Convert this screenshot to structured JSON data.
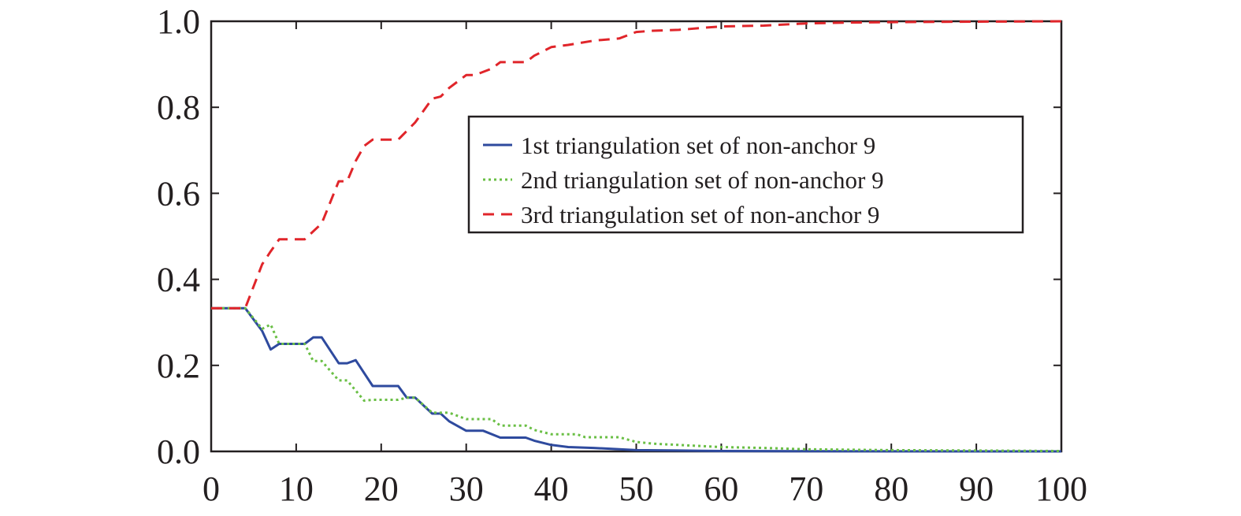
{
  "chart_data": {
    "type": "line",
    "title": "",
    "xlabel": "",
    "ylabel": "",
    "xlim": [
      0,
      100
    ],
    "ylim": [
      0,
      1
    ],
    "xticks": [
      0,
      10,
      20,
      30,
      40,
      50,
      60,
      70,
      80,
      90,
      100
    ],
    "yticks": [
      0,
      0.2,
      0.4,
      0.6,
      0.8,
      1.0
    ],
    "xtick_labels": [
      "0",
      "10",
      "20",
      "30",
      "40",
      "50",
      "60",
      "70",
      "80",
      "90",
      "100"
    ],
    "ytick_labels": [
      "0.0",
      "0.2",
      "0.4",
      "0.6",
      "0.8",
      "1.0"
    ],
    "grid": false,
    "legend_position": "upper-right",
    "series": [
      {
        "name": "1st triangulation set of non-anchor 9",
        "color": "#2e4a9e",
        "dash": "solid",
        "x": [
          0,
          4,
          6,
          7,
          8,
          11,
          12,
          13,
          15,
          16,
          17,
          19,
          22,
          23,
          24,
          26,
          27,
          28,
          30,
          32,
          34,
          37,
          38,
          40,
          42,
          45,
          48,
          50,
          55,
          60,
          70,
          80,
          100
        ],
        "y": [
          0.333,
          0.333,
          0.28,
          0.237,
          0.25,
          0.25,
          0.265,
          0.265,
          0.205,
          0.205,
          0.212,
          0.152,
          0.152,
          0.125,
          0.125,
          0.088,
          0.088,
          0.07,
          0.048,
          0.048,
          0.032,
          0.032,
          0.025,
          0.015,
          0.01,
          0.008,
          0.005,
          0.003,
          0.002,
          0.001,
          0.0005,
          0.0002,
          0
        ]
      },
      {
        "name": "2nd triangulation set of non-anchor 9",
        "color": "#6abf45",
        "dash": "dotted",
        "x": [
          0,
          4,
          6,
          7,
          8,
          11,
          12,
          13,
          15,
          16,
          18,
          19,
          22,
          23,
          24,
          26,
          28,
          30,
          33,
          34,
          37,
          38,
          40,
          43,
          44,
          48,
          50,
          52,
          55,
          60,
          65,
          70,
          80,
          90,
          100
        ],
        "y": [
          0.333,
          0.333,
          0.285,
          0.295,
          0.25,
          0.25,
          0.21,
          0.21,
          0.165,
          0.165,
          0.118,
          0.12,
          0.12,
          0.125,
          0.125,
          0.09,
          0.09,
          0.075,
          0.075,
          0.06,
          0.06,
          0.05,
          0.04,
          0.04,
          0.033,
          0.033,
          0.022,
          0.018,
          0.015,
          0.01,
          0.008,
          0.005,
          0.003,
          0.002,
          0.001
        ]
      },
      {
        "name": "3rd triangulation set of non-anchor 9",
        "color": "#e0252a",
        "dash": "dashed",
        "x": [
          0,
          4,
          6,
          7,
          8,
          10,
          11,
          13,
          15,
          16,
          17,
          18,
          19,
          20,
          22,
          24,
          26,
          27,
          28,
          30,
          31,
          33,
          34,
          37,
          38,
          40,
          42,
          45,
          48,
          50,
          52,
          55,
          58,
          60,
          65,
          70,
          75,
          80,
          90,
          100
        ],
        "y": [
          0.333,
          0.333,
          0.435,
          0.465,
          0.493,
          0.493,
          0.493,
          0.53,
          0.628,
          0.628,
          0.675,
          0.71,
          0.725,
          0.725,
          0.725,
          0.765,
          0.82,
          0.825,
          0.845,
          0.875,
          0.875,
          0.89,
          0.905,
          0.905,
          0.92,
          0.94,
          0.945,
          0.955,
          0.96,
          0.975,
          0.978,
          0.98,
          0.985,
          0.988,
          0.99,
          0.995,
          0.997,
          0.998,
          0.999,
          1.0
        ]
      }
    ]
  },
  "colors": {
    "axis": "#231f20",
    "legend_border": "#231f20"
  }
}
